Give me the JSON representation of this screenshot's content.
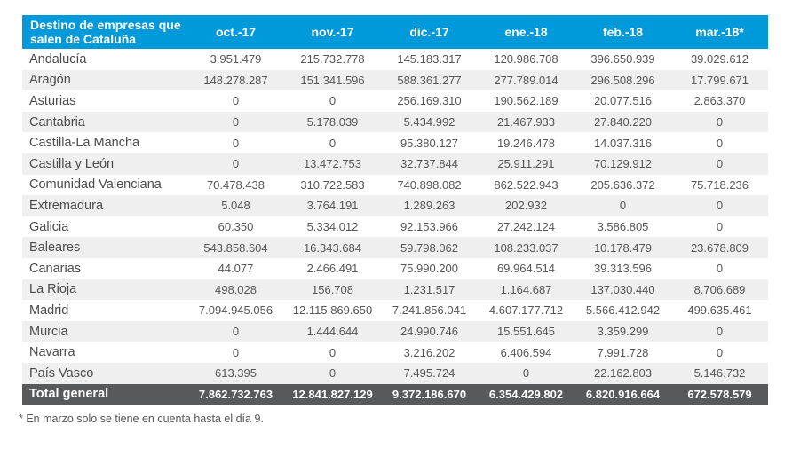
{
  "table": {
    "header": [
      "Destino de empresas que salen de Cataluña",
      "oct.-17",
      "nov.-17",
      "dic.-17",
      "ene.-18",
      "feb.-18",
      "mar.-18*"
    ],
    "rows": [
      [
        "Andalucía",
        "3.951.479",
        "215.732.778",
        "145.183.317",
        "120.986.708",
        "396.650.939",
        "39.029.612"
      ],
      [
        "Aragón",
        "148.278.287",
        "151.341.596",
        "588.361.277",
        "277.789.014",
        "296.508.296",
        "17.799.671"
      ],
      [
        "Asturias",
        "0",
        "0",
        "256.169.310",
        "190.562.189",
        "20.077.516",
        "2.863.370"
      ],
      [
        "Cantabria",
        "0",
        "5.178.039",
        "5.434.992",
        "21.467.933",
        "27.840.220",
        "0"
      ],
      [
        "Castilla-La Mancha",
        "0",
        "0",
        "95.380.127",
        "19.246.478",
        "14.037.316",
        "0"
      ],
      [
        "Castilla y León",
        "0",
        "13.472.753",
        "32.737.844",
        "25.911.291",
        "70.129.912",
        "0"
      ],
      [
        "Comunidad Valenciana",
        "70.478.438",
        "310.722.583",
        "740.898.082",
        "862.522.943",
        "205.636.372",
        "75.718.236"
      ],
      [
        "Extremadura",
        "5.048",
        "3.764.191",
        "1.289.263",
        "202.932",
        "0",
        "0"
      ],
      [
        "Galicia",
        "60.350",
        "5.334.012",
        "92.153.966",
        "27.242.124",
        "3.586.805",
        "0"
      ],
      [
        "Baleares",
        "543.858.604",
        "16.343.684",
        "59.798.062",
        "108.233.037",
        "10.178.479",
        "23.678.809"
      ],
      [
        "Canarias",
        "44.077",
        "2.466.491",
        "75.990.200",
        "69.964.514",
        "39.313.596",
        "0"
      ],
      [
        "La Rioja",
        "498.028",
        "156.708",
        "1.231.517",
        "1.164.687",
        "137.030.440",
        "8.706.689"
      ],
      [
        "Madrid",
        "7.094.945.056",
        "12.115.869.650",
        "7.241.856.041",
        "4.607.177.712",
        "5.566.412.942",
        "499.635.461"
      ],
      [
        "Murcia",
        "0",
        "1.444.644",
        "24.990.746",
        "15.551.645",
        "3.359.299",
        "0"
      ],
      [
        "Navarra",
        "0",
        "0",
        "3.216.202",
        "6.406.594",
        "7.991.728",
        "0"
      ],
      [
        "País Vasco",
        "613.395",
        "0",
        "7.495.724",
        "0",
        "22.162.803",
        "5.146.732"
      ]
    ],
    "total": [
      "Total general",
      "7.862.732.763",
      "12.841.827.129",
      "9.372.186.670",
      "6.354.429.802",
      "6.820.916.664",
      "672.578.579"
    ]
  },
  "footnote": "* En marzo solo se tiene en cuenta hasta el día 9.",
  "colors": {
    "header": "#0099d9",
    "total": "#58595b",
    "stripe": "#efefef"
  }
}
